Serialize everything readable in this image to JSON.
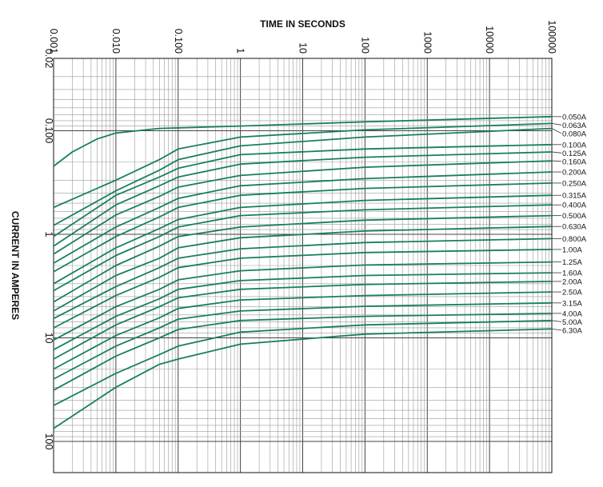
{
  "chart_data": {
    "type": "line",
    "title": "",
    "xlabel": "TIME IN SECONDS",
    "ylabel": "CURRENT IN AMPERES",
    "x_scale": "log",
    "y_scale": "log",
    "y_inverted": true,
    "x_range": [
      0.001,
      100000
    ],
    "y_range": [
      0.02,
      150
    ],
    "grid": true,
    "legend": "labels-at-right-end",
    "line_color": "#17805a",
    "x_ticks": [
      "0.001",
      "0.010",
      "0.100",
      "1",
      "10",
      "100",
      "1000",
      "10000",
      "100000"
    ],
    "y_ticks": [
      "0.02",
      "0.100",
      "1",
      "10",
      "100"
    ],
    "series": [
      {
        "name": "0.050A",
        "x": [
          0.001,
          0.002,
          0.005,
          0.01,
          0.05,
          1,
          100,
          100000
        ],
        "y": [
          0.22,
          0.16,
          0.12,
          0.105,
          0.095,
          0.09,
          0.082,
          0.073
        ]
      },
      {
        "name": "0.063A",
        "x": [
          0.001,
          0.01,
          0.05,
          0.1,
          1,
          100,
          100000
        ],
        "y": [
          0.55,
          0.3,
          0.19,
          0.15,
          0.115,
          0.098,
          0.085
        ]
      },
      {
        "name": "0.080A",
        "x": [
          0.001,
          0.01,
          0.05,
          0.1,
          1,
          100,
          100000
        ],
        "y": [
          0.82,
          0.38,
          0.24,
          0.19,
          0.14,
          0.115,
          0.095
        ]
      },
      {
        "name": "0.100A",
        "x": [
          0.001,
          0.01,
          0.05,
          0.1,
          1,
          100,
          100000
        ],
        "y": [
          1.05,
          0.42,
          0.28,
          0.23,
          0.17,
          0.15,
          0.136
        ]
      },
      {
        "name": "0.125A",
        "x": [
          0.001,
          0.01,
          0.05,
          0.1,
          1,
          100,
          100000
        ],
        "y": [
          1.3,
          0.52,
          0.34,
          0.28,
          0.21,
          0.18,
          0.16
        ]
      },
      {
        "name": "0.160A",
        "x": [
          0.001,
          0.01,
          0.05,
          0.1,
          1,
          100,
          100000
        ],
        "y": [
          1.55,
          0.65,
          0.43,
          0.35,
          0.27,
          0.225,
          0.195
        ]
      },
      {
        "name": "0.200A",
        "x": [
          0.001,
          0.01,
          0.05,
          0.1,
          1,
          100,
          100000
        ],
        "y": [
          1.9,
          0.85,
          0.55,
          0.45,
          0.34,
          0.29,
          0.25
        ]
      },
      {
        "name": "0.250A",
        "x": [
          0.001,
          0.01,
          0.05,
          0.1,
          1,
          100,
          100000
        ],
        "y": [
          2.3,
          1.05,
          0.68,
          0.55,
          0.42,
          0.36,
          0.32
        ]
      },
      {
        "name": "0.315A",
        "x": [
          0.001,
          0.01,
          0.05,
          0.1,
          1,
          100,
          100000
        ],
        "y": [
          3.0,
          1.35,
          0.88,
          0.72,
          0.55,
          0.47,
          0.42
        ]
      },
      {
        "name": "0.400A",
        "x": [
          0.001,
          0.01,
          0.05,
          0.1,
          1,
          100,
          100000
        ],
        "y": [
          3.5,
          1.6,
          1.05,
          0.85,
          0.66,
          0.58,
          0.52
        ]
      },
      {
        "name": "0.500A",
        "x": [
          0.001,
          0.01,
          0.05,
          0.1,
          1,
          100,
          100000
        ],
        "y": [
          4.5,
          2.0,
          1.3,
          1.05,
          0.85,
          0.73,
          0.66
        ]
      },
      {
        "name": "0.630A",
        "x": [
          0.001,
          0.01,
          0.05,
          0.1,
          1,
          100,
          100000
        ],
        "y": [
          5.5,
          2.5,
          1.7,
          1.35,
          1.08,
          0.93,
          0.84
        ]
      },
      {
        "name": "0.800A",
        "x": [
          0.001,
          0.01,
          0.05,
          0.1,
          1,
          100,
          100000
        ],
        "y": [
          6.5,
          3.2,
          2.1,
          1.7,
          1.38,
          1.2,
          1.1
        ]
      },
      {
        "name": "1.00A",
        "x": [
          0.001,
          0.01,
          0.05,
          0.1,
          1,
          100,
          100000
        ],
        "y": [
          8.0,
          3.9,
          2.6,
          2.1,
          1.7,
          1.5,
          1.4
        ]
      },
      {
        "name": "1.25A",
        "x": [
          0.001,
          0.01,
          0.05,
          0.1,
          1,
          100,
          100000
        ],
        "y": [
          10.5,
          5.0,
          3.4,
          2.75,
          2.25,
          1.98,
          1.85
        ]
      },
      {
        "name": "1.60A",
        "x": [
          0.001,
          0.01,
          0.05,
          0.1,
          1,
          100,
          100000
        ],
        "y": [
          13,
          6.2,
          4.2,
          3.4,
          2.8,
          2.5,
          2.35
        ]
      },
      {
        "name": "2.00A",
        "x": [
          0.001,
          0.01,
          0.05,
          0.1,
          1,
          100,
          100000
        ],
        "y": [
          16,
          7.5,
          5.0,
          4.1,
          3.4,
          3.05,
          2.85
        ]
      },
      {
        "name": "2.50A",
        "x": [
          0.001,
          0.01,
          0.05,
          0.1,
          1,
          100,
          100000
        ],
        "y": [
          20,
          9.5,
          6.4,
          5.2,
          4.3,
          3.9,
          3.6
        ]
      },
      {
        "name": "3.15A",
        "x": [
          0.001,
          0.01,
          0.05,
          0.1,
          1,
          100,
          100000
        ],
        "y": [
          25,
          12,
          8.0,
          6.6,
          5.5,
          4.95,
          4.6
        ]
      },
      {
        "name": "4.00A",
        "x": [
          0.001,
          0.01,
          0.05,
          0.1,
          1,
          100,
          100000
        ],
        "y": [
          32,
          15,
          10,
          8.3,
          6.8,
          6.2,
          5.8
        ]
      },
      {
        "name": "5.00A",
        "x": [
          0.001,
          0.01,
          0.05,
          0.1,
          1,
          100,
          100000
        ],
        "y": [
          45,
          22,
          14.5,
          12,
          8.8,
          7.5,
          6.8
        ]
      },
      {
        "name": "6.30A",
        "x": [
          0.001,
          0.01,
          0.05,
          0.1,
          1,
          100,
          100000
        ],
        "y": [
          75,
          30,
          18,
          16,
          11.5,
          9.2,
          8.2
        ]
      }
    ]
  }
}
